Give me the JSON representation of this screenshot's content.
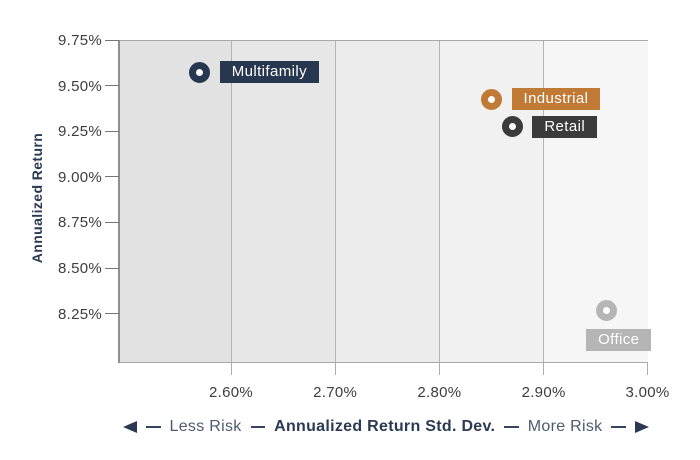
{
  "chart_data": {
    "type": "scatter",
    "title": "",
    "xlabel": "Annualized Return Std. Dev.",
    "ylabel": "Annualized Return",
    "x_ticks": [
      "2.60%",
      "2.70%",
      "2.80%",
      "2.90%",
      "3.00%"
    ],
    "y_ticks": [
      "9.75%",
      "9.50%",
      "9.25%",
      "9.00%",
      "8.75%",
      "8.50%",
      "8.25%"
    ],
    "xlim": [
      2.49,
      3.0
    ],
    "ylim": [
      7.98,
      9.75
    ],
    "grid": "vertical-only",
    "legend": "point-labels",
    "points": [
      {
        "name": "Multifamily",
        "x": 2.57,
        "y": 9.58,
        "color": "#26374f",
        "label_side": "right"
      },
      {
        "name": "Industrial",
        "x": 2.85,
        "y": 9.43,
        "color": "#c07a35",
        "label_side": "right"
      },
      {
        "name": "Retail",
        "x": 2.87,
        "y": 9.28,
        "color": "#3b3b3b",
        "label_side": "right"
      },
      {
        "name": "Office",
        "x": 2.96,
        "y": 8.27,
        "color": "#b5b5b5",
        "label_side": "below"
      }
    ]
  },
  "x_axis": {
    "title": "Annualized Return Std. Dev.",
    "less_label": "Less Risk",
    "more_label": "More Risk"
  },
  "y_axis": {
    "title": "Annualized Return"
  },
  "colors": {
    "navy": "#2b3a52",
    "orange": "#c07a35",
    "charcoal": "#3b3b3b",
    "light_gray": "#b5b5b5",
    "tick_label": "#3d3d3d",
    "gridline": "#b4b4b4",
    "plot_border": "#a8a8a8",
    "axis_line": "#8f8f8f",
    "risk_label": "#4d5a6e",
    "bands": [
      "#e2e2e2",
      "#e7e7e7",
      "#ececec",
      "#f1f1f1",
      "#f6f6f6"
    ]
  }
}
